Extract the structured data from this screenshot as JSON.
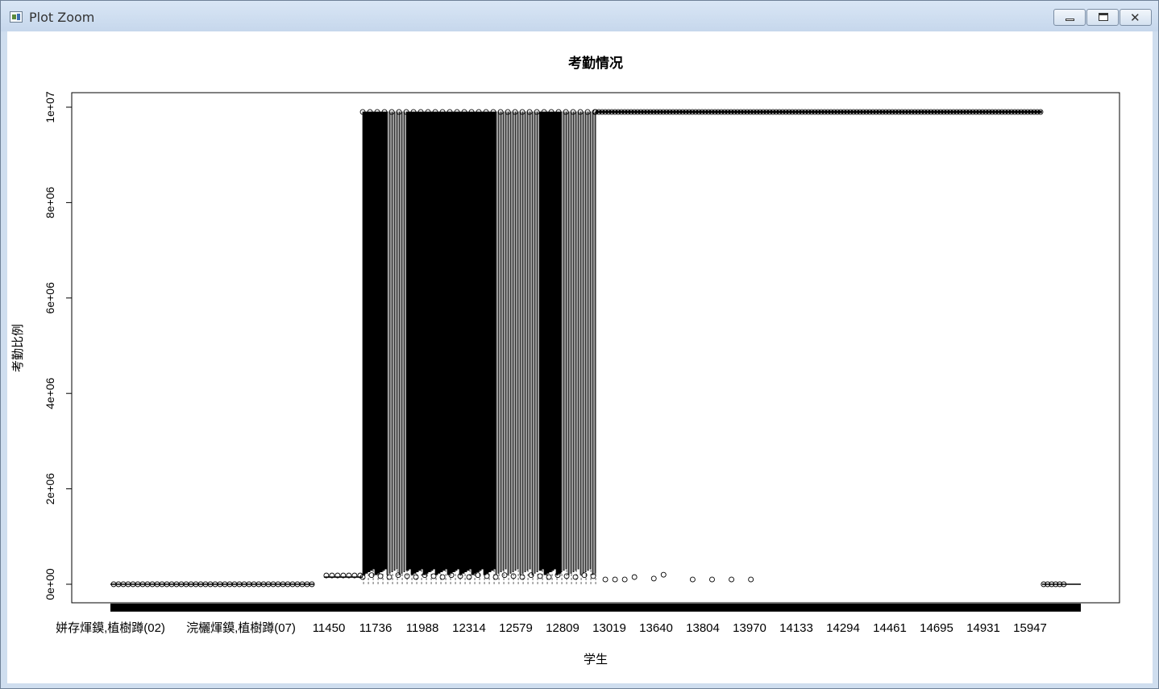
{
  "window": {
    "title": "Plot Zoom",
    "controls": [
      "minimize",
      "maximize",
      "close"
    ],
    "close_glyph": "✕"
  },
  "chart_data": {
    "type": "box",
    "title": "考勤情况",
    "xlabel": "学生",
    "ylabel": "考勤比例",
    "ylim": [
      0,
      10000000
    ],
    "yticks": [
      "0e+00",
      "2e+06",
      "4e+06",
      "6e+06",
      "8e+06",
      "1e+07"
    ],
    "ytick_values": [
      0,
      2000000,
      4000000,
      6000000,
      8000000,
      10000000
    ],
    "categories_shown": [
      "姘存煇鏌,植樹蹲(02)",
      "浣欐煇鏌,植樹蹲(07)",
      "11450",
      "11736",
      "11988",
      "12314",
      "12579",
      "12809",
      "13019",
      "13640",
      "13804",
      "13970",
      "14133",
      "14294",
      "14461",
      "14695",
      "14931",
      "15947"
    ],
    "segments": [
      {
        "description": "near-zero values",
        "x_range": [
          0,
          0.21
        ],
        "y": 0
      },
      {
        "description": "small values",
        "x_range": [
          0.22,
          0.26
        ],
        "y": 150000
      },
      {
        "description": "dense boxes spanning full range",
        "x_range": [
          0.26,
          0.5
        ],
        "y_low": 0,
        "y_high": 9900000
      },
      {
        "description": "high values",
        "x_range": [
          0.5,
          0.96
        ],
        "y": 9900000
      },
      {
        "description": "near-zero values",
        "x_range": [
          0.96,
          1.0
        ],
        "y": 0
      }
    ],
    "grid": false,
    "legend": "none"
  }
}
